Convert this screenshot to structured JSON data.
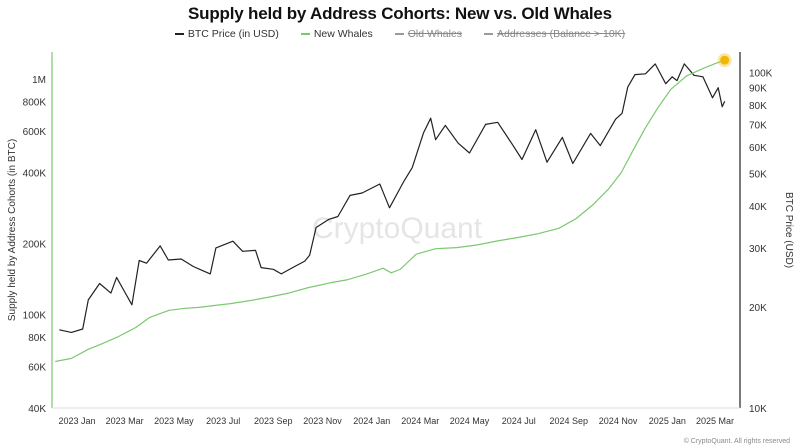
{
  "chart_data": {
    "type": "line",
    "title": "Supply held by Address Cohorts: New vs. Old Whales",
    "watermark": "CryptoQuant",
    "footer": "© CryptoQuant. All rights reserved",
    "left_axis": {
      "label": "Supply held by Address Cohorts (in BTC)",
      "scale": "log",
      "range": [
        40000,
        1300000
      ],
      "ticks": [
        {
          "value": 40000,
          "label": "40K"
        },
        {
          "value": 60000,
          "label": "60K"
        },
        {
          "value": 80000,
          "label": "80K"
        },
        {
          "value": 100000,
          "label": "100K"
        },
        {
          "value": 200000,
          "label": "200K"
        },
        {
          "value": 400000,
          "label": "400K"
        },
        {
          "value": 600000,
          "label": "600K"
        },
        {
          "value": 800000,
          "label": "800K"
        },
        {
          "value": 1000000,
          "label": "1M"
        }
      ]
    },
    "right_axis": {
      "label": "BTC Price (USD)",
      "scale": "log",
      "range": [
        10000,
        115000
      ],
      "ticks": [
        {
          "value": 10000,
          "label": "10K"
        },
        {
          "value": 20000,
          "label": "20K"
        },
        {
          "value": 30000,
          "label": "30K"
        },
        {
          "value": 40000,
          "label": "40K"
        },
        {
          "value": 50000,
          "label": "50K"
        },
        {
          "value": 60000,
          "label": "60K"
        },
        {
          "value": 70000,
          "label": "70K"
        },
        {
          "value": 80000,
          "label": "80K"
        },
        {
          "value": 90000,
          "label": "90K"
        },
        {
          "value": 100000,
          "label": "100K"
        }
      ]
    },
    "x_axis": {
      "range": [
        "2022-12-01",
        "2025-04-01"
      ],
      "ticks": [
        {
          "date": "2023-01-01",
          "label": "2023 Jan"
        },
        {
          "date": "2023-03-01",
          "label": "2023 Mar"
        },
        {
          "date": "2023-05-01",
          "label": "2023 May"
        },
        {
          "date": "2023-07-01",
          "label": "2023 Jul"
        },
        {
          "date": "2023-09-01",
          "label": "2023 Sep"
        },
        {
          "date": "2023-11-01",
          "label": "2023 Nov"
        },
        {
          "date": "2024-01-01",
          "label": "2024 Jan"
        },
        {
          "date": "2024-03-01",
          "label": "2024 Mar"
        },
        {
          "date": "2024-05-01",
          "label": "2024 May"
        },
        {
          "date": "2024-07-01",
          "label": "2024 Jul"
        },
        {
          "date": "2024-09-01",
          "label": "2024 Sep"
        },
        {
          "date": "2024-11-01",
          "label": "2024 Nov"
        },
        {
          "date": "2025-01-01",
          "label": "2025 Jan"
        },
        {
          "date": "2025-03-01",
          "label": "2025 Mar"
        }
      ]
    },
    "legend": [
      {
        "name": "BTC Price (in USD)",
        "color": "#222222",
        "visible": true
      },
      {
        "name": "New Whales",
        "color": "#7bc96f",
        "visible": true
      },
      {
        "name": "Old Whales",
        "color": "#9a9a9a",
        "visible": false
      },
      {
        "name": "Addresses (Balance > 10K)",
        "color": "#9a9a9a",
        "visible": false
      }
    ],
    "highlight_marker": {
      "date": "2025-03-13",
      "value": 1200000,
      "color": "#f2b705"
    },
    "series": [
      {
        "name": "BTC Price (in USD)",
        "axis": "right",
        "color": "#222222",
        "points": [
          [
            "2022-12-10",
            17100
          ],
          [
            "2022-12-25",
            16800
          ],
          [
            "2023-01-08",
            17200
          ],
          [
            "2023-01-15",
            21000
          ],
          [
            "2023-01-29",
            23500
          ],
          [
            "2023-02-12",
            22000
          ],
          [
            "2023-02-19",
            24500
          ],
          [
            "2023-03-10",
            20300
          ],
          [
            "2023-03-19",
            27500
          ],
          [
            "2023-03-28",
            27000
          ],
          [
            "2023-04-14",
            30400
          ],
          [
            "2023-04-24",
            27600
          ],
          [
            "2023-05-10",
            27800
          ],
          [
            "2023-05-25",
            26400
          ],
          [
            "2023-06-05",
            25700
          ],
          [
            "2023-06-15",
            25100
          ],
          [
            "2023-06-22",
            30000
          ],
          [
            "2023-07-13",
            31400
          ],
          [
            "2023-07-25",
            29300
          ],
          [
            "2023-08-10",
            29500
          ],
          [
            "2023-08-17",
            26200
          ],
          [
            "2023-09-01",
            25900
          ],
          [
            "2023-09-11",
            25100
          ],
          [
            "2023-09-25",
            26200
          ],
          [
            "2023-10-10",
            27400
          ],
          [
            "2023-10-16",
            28500
          ],
          [
            "2023-10-24",
            34500
          ],
          [
            "2023-11-09",
            36500
          ],
          [
            "2023-11-20",
            37200
          ],
          [
            "2023-12-05",
            43000
          ],
          [
            "2023-12-20",
            43700
          ],
          [
            "2024-01-11",
            46500
          ],
          [
            "2024-01-23",
            39500
          ],
          [
            "2024-02-10",
            47500
          ],
          [
            "2024-02-20",
            52000
          ],
          [
            "2024-03-05",
            66000
          ],
          [
            "2024-03-14",
            73000
          ],
          [
            "2024-03-20",
            63000
          ],
          [
            "2024-04-01",
            69500
          ],
          [
            "2024-04-17",
            61500
          ],
          [
            "2024-05-01",
            57500
          ],
          [
            "2024-05-21",
            70000
          ],
          [
            "2024-06-05",
            71000
          ],
          [
            "2024-06-24",
            60500
          ],
          [
            "2024-07-05",
            55000
          ],
          [
            "2024-07-22",
            67500
          ],
          [
            "2024-08-05",
            54000
          ],
          [
            "2024-08-24",
            64000
          ],
          [
            "2024-09-06",
            53500
          ],
          [
            "2024-09-28",
            65800
          ],
          [
            "2024-10-10",
            60500
          ],
          [
            "2024-10-29",
            72500
          ],
          [
            "2024-11-06",
            75500
          ],
          [
            "2024-11-13",
            90500
          ],
          [
            "2024-11-22",
            98500
          ],
          [
            "2024-12-05",
            99000
          ],
          [
            "2024-12-17",
            106000
          ],
          [
            "2024-12-30",
            92500
          ],
          [
            "2025-01-07",
            97000
          ],
          [
            "2025-01-13",
            94500
          ],
          [
            "2025-01-22",
            106000
          ],
          [
            "2025-02-03",
            98000
          ],
          [
            "2025-02-14",
            97000
          ],
          [
            "2025-02-26",
            84000
          ],
          [
            "2025-03-05",
            90000
          ],
          [
            "2025-03-10",
            79000
          ],
          [
            "2025-03-13",
            82000
          ]
        ]
      },
      {
        "name": "New Whales",
        "axis": "left",
        "color": "#7bc96f",
        "points": [
          [
            "2022-12-05",
            63000
          ],
          [
            "2022-12-25",
            65000
          ],
          [
            "2023-01-15",
            71000
          ],
          [
            "2023-02-01",
            75000
          ],
          [
            "2023-02-20",
            80000
          ],
          [
            "2023-03-15",
            88000
          ],
          [
            "2023-04-01",
            97000
          ],
          [
            "2023-04-25",
            104000
          ],
          [
            "2023-05-15",
            106000
          ],
          [
            "2023-06-01",
            107000
          ],
          [
            "2023-06-20",
            109000
          ],
          [
            "2023-07-10",
            111000
          ],
          [
            "2023-08-01",
            114000
          ],
          [
            "2023-08-25",
            118000
          ],
          [
            "2023-09-20",
            123000
          ],
          [
            "2023-10-15",
            130000
          ],
          [
            "2023-11-10",
            136000
          ],
          [
            "2023-12-01",
            140000
          ],
          [
            "2023-12-25",
            148000
          ],
          [
            "2024-01-15",
            157000
          ],
          [
            "2024-01-25",
            150000
          ],
          [
            "2024-02-05",
            155000
          ],
          [
            "2024-02-25",
            180000
          ],
          [
            "2024-03-20",
            190000
          ],
          [
            "2024-04-15",
            192000
          ],
          [
            "2024-05-10",
            197000
          ],
          [
            "2024-06-05",
            205000
          ],
          [
            "2024-06-30",
            212000
          ],
          [
            "2024-07-25",
            220000
          ],
          [
            "2024-08-20",
            232000
          ],
          [
            "2024-09-10",
            255000
          ],
          [
            "2024-09-30",
            290000
          ],
          [
            "2024-10-20",
            340000
          ],
          [
            "2024-11-05",
            400000
          ],
          [
            "2024-11-20",
            500000
          ],
          [
            "2024-12-05",
            620000
          ],
          [
            "2024-12-20",
            750000
          ],
          [
            "2025-01-05",
            900000
          ],
          [
            "2025-01-25",
            1030000
          ],
          [
            "2025-02-15",
            1110000
          ],
          [
            "2025-03-01",
            1160000
          ],
          [
            "2025-03-13",
            1200000
          ]
        ]
      }
    ]
  }
}
